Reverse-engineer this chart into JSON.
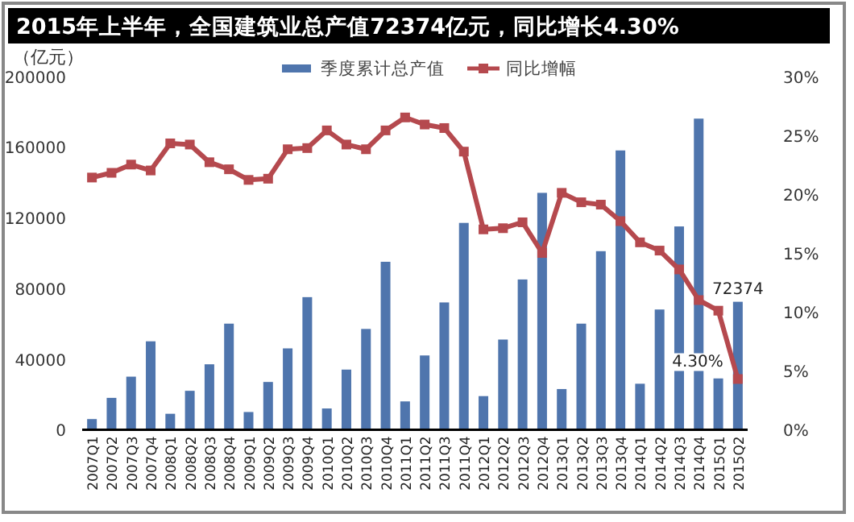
{
  "chart_data": {
    "type": "bar",
    "title": "2015年上半年，全国建筑业总产值72374亿元，同比增长4.30%",
    "ylabel": "（亿元）",
    "categories": [
      "2007Q1",
      "2007Q2",
      "2007Q3",
      "2007Q4",
      "2008Q1",
      "2008Q2",
      "2008Q3",
      "2008Q4",
      "2009Q1",
      "2009Q2",
      "2009Q3",
      "2009Q4",
      "2010Q1",
      "2010Q2",
      "2010Q3",
      "2010Q4",
      "2011Q1",
      "2011Q2",
      "2011Q3",
      "2011Q4",
      "2012Q1",
      "2012Q2",
      "2012Q3",
      "2012Q4",
      "2013Q1",
      "2013Q2",
      "2013Q3",
      "2013Q4",
      "2014Q1",
      "2014Q2",
      "2014Q3",
      "2014Q4",
      "2015Q1",
      "2015Q2"
    ],
    "series": [
      {
        "name": "季度累计总产值",
        "color": "#4f75ad",
        "values": [
          6000,
          18000,
          30000,
          50000,
          9000,
          22000,
          37000,
          60000,
          10000,
          27000,
          46000,
          75000,
          12000,
          34000,
          57000,
          95000,
          16000,
          42000,
          72000,
          117000,
          19000,
          51000,
          85000,
          134000,
          23000,
          60000,
          101000,
          158000,
          26000,
          68000,
          115000,
          176000,
          29000,
          72374
        ],
        "value_labels": [
          null,
          null,
          null,
          null,
          null,
          null,
          null,
          null,
          null,
          null,
          null,
          null,
          null,
          null,
          null,
          null,
          null,
          null,
          null,
          null,
          null,
          null,
          null,
          null,
          null,
          null,
          null,
          null,
          null,
          null,
          null,
          null,
          null,
          "72374"
        ]
      },
      {
        "name": "同比增幅",
        "type": "line",
        "axis": "y2",
        "color": "#b5494e",
        "marker": "square",
        "values": [
          21.4,
          21.8,
          22.5,
          22.0,
          24.3,
          24.2,
          22.7,
          22.1,
          21.2,
          21.3,
          23.8,
          23.9,
          25.4,
          24.2,
          23.8,
          25.4,
          26.5,
          25.9,
          25.6,
          23.6,
          17.0,
          17.1,
          17.6,
          15.0,
          20.1,
          19.3,
          19.1,
          17.7,
          15.9,
          15.2,
          13.6,
          11.0,
          10.1,
          4.3
        ],
        "value_labels": [
          null,
          null,
          null,
          null,
          null,
          null,
          null,
          null,
          null,
          null,
          null,
          null,
          null,
          null,
          null,
          null,
          null,
          null,
          null,
          null,
          null,
          null,
          null,
          null,
          null,
          null,
          null,
          null,
          null,
          null,
          null,
          null,
          null,
          "4.30%"
        ]
      }
    ],
    "ylim": [
      0,
      200000
    ],
    "yticks": [
      0,
      40000,
      80000,
      120000,
      160000,
      200000
    ],
    "y2lim": [
      0,
      30
    ],
    "y2ticks": [
      {
        "value": 0,
        "label": "0%"
      },
      {
        "value": 5,
        "label": "5%"
      },
      {
        "value": 10,
        "label": "10%"
      },
      {
        "value": 15,
        "label": "15%"
      },
      {
        "value": 20,
        "label": "20%"
      },
      {
        "value": 25,
        "label": "25%"
      },
      {
        "value": 30,
        "label": "30%"
      }
    ],
    "legend": "top",
    "grid": false
  }
}
